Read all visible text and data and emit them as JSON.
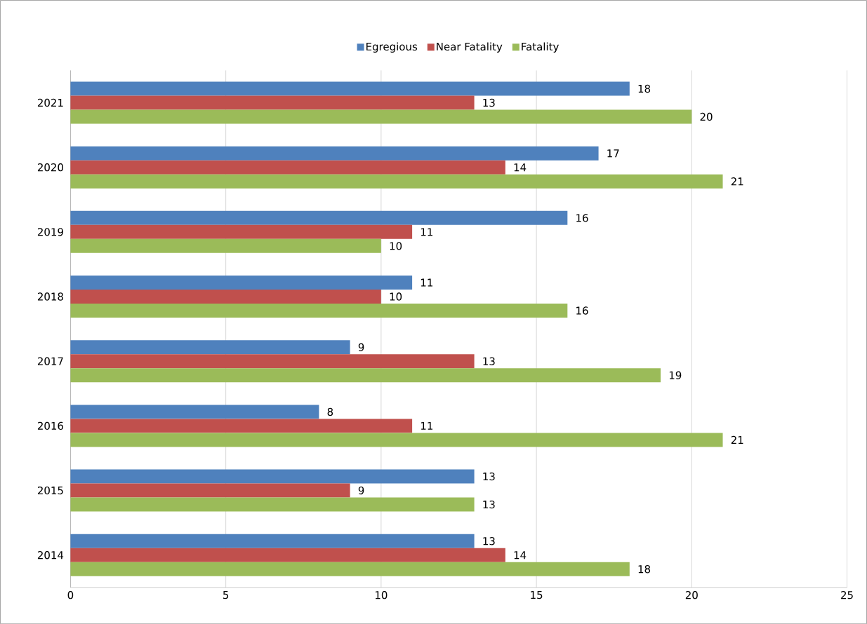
{
  "chart_data": {
    "type": "bar",
    "orientation": "horizontal",
    "categories": [
      "2021",
      "2020",
      "2019",
      "2018",
      "2017",
      "2016",
      "2015",
      "2014"
    ],
    "series": [
      {
        "name": "Egregious",
        "color": "#4f81bd",
        "values": [
          18,
          17,
          16,
          11,
          9,
          8,
          13,
          13
        ]
      },
      {
        "name": "Near Fatality",
        "color": "#c0504d",
        "values": [
          13,
          14,
          11,
          10,
          13,
          11,
          9,
          14
        ]
      },
      {
        "name": "Fatality",
        "color": "#9bbb59",
        "values": [
          20,
          21,
          10,
          16,
          19,
          21,
          13,
          18
        ]
      }
    ],
    "xlim": [
      0,
      25
    ],
    "xticks": [
      0,
      5,
      10,
      15,
      20,
      25
    ],
    "grid": "x",
    "legend": "top",
    "data_labels": true
  }
}
